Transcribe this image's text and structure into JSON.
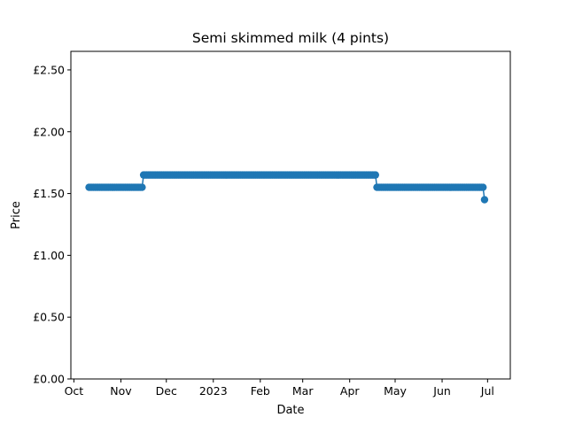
{
  "chart_data": {
    "type": "line",
    "title": "Semi skimmed milk (4 pints)",
    "xlabel": "Date",
    "ylabel": "Price",
    "ylim": [
      0,
      2.65
    ],
    "xlim": [
      "2022-09-29",
      "2023-07-16"
    ],
    "yticks": [
      {
        "value": 0,
        "label": "£0.00"
      },
      {
        "value": 0.5,
        "label": "£0.50"
      },
      {
        "value": 1.0,
        "label": "£1.00"
      },
      {
        "value": 1.5,
        "label": "£1.50"
      },
      {
        "value": 2.0,
        "label": "£2.00"
      },
      {
        "value": 2.5,
        "label": "£2.50"
      }
    ],
    "xticks": [
      {
        "date": "2022-10-01",
        "label": "Oct"
      },
      {
        "date": "2022-11-01",
        "label": "Nov"
      },
      {
        "date": "2022-12-01",
        "label": "Dec"
      },
      {
        "date": "2023-01-01",
        "label": "2023"
      },
      {
        "date": "2023-02-01",
        "label": "Feb"
      },
      {
        "date": "2023-03-01",
        "label": "Mar"
      },
      {
        "date": "2023-04-01",
        "label": "Apr"
      },
      {
        "date": "2023-05-01",
        "label": "May"
      },
      {
        "date": "2023-06-01",
        "label": "Jun"
      },
      {
        "date": "2023-07-01",
        "label": "Jul"
      }
    ],
    "series": [
      {
        "segments": [
          {
            "start": "2022-10-11",
            "end": "2022-11-15",
            "price": 1.55
          },
          {
            "start": "2022-11-16",
            "end": "2023-04-18",
            "price": 1.65
          },
          {
            "start": "2023-04-19",
            "end": "2023-06-28",
            "price": 1.55
          },
          {
            "start": "2023-06-29",
            "end": "2023-06-29",
            "price": 1.45
          }
        ]
      }
    ],
    "color": "#1f77b4",
    "grid": false,
    "legend": "none"
  }
}
